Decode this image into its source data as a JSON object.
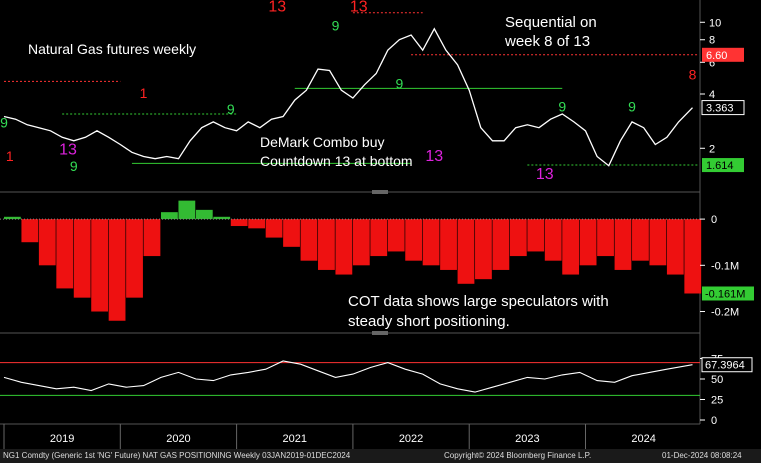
{
  "annotations": {
    "title": "Natural Gas futures weekly",
    "sequential_line1": "Sequential on",
    "sequential_line2": "week 8 of 13",
    "combo_line1": "DeMark Combo buy",
    "combo_line2": "Countdown 13 at bottom",
    "cot_line1": "COT data shows large speculators with",
    "cot_line2": "steady short positioning."
  },
  "footer": {
    "left": "NG1 Comdty (Generic 1st 'NG' Future) NAT GAS POSITIONING  Weekly 03JAN2019-01DEC2024",
    "center": "Copyright© 2024 Bloomberg Finance L.P.",
    "right": "01-Dec-2024 08:08:24"
  },
  "colors": {
    "background": "#000000",
    "price_line": "#ffffff",
    "resistance_level": "#ff3333",
    "current_price": "#ffffff",
    "support_level": "#33cc33",
    "bar_positive": "#33bb33",
    "bar_negative": "#ee1111",
    "demark_sell": "#ff2222",
    "demark_buy": "#33dd55",
    "combo_13": "#dd22dd",
    "axis_text": "#ffffff"
  },
  "chart_data": [
    {
      "type": "line",
      "name": "price",
      "yscale": "log",
      "ylim": [
        1.3,
        12
      ],
      "yticks": [
        10,
        8,
        6,
        4,
        2
      ],
      "x_labels": [
        "2019",
        "2020",
        "2021",
        "2022",
        "2023",
        "2024"
      ],
      "y_badges": [
        {
          "label": "6.60",
          "value": 6.6,
          "color": "#ff3333"
        },
        {
          "label": "3.363",
          "value": 3.363,
          "color": "#ffffff"
        },
        {
          "label": "1.614",
          "value": 1.614,
          "color": "#33cc33"
        }
      ],
      "x": [
        2019.0,
        2019.1,
        2019.2,
        2019.3,
        2019.4,
        2019.5,
        2019.6,
        2019.7,
        2019.8,
        2019.9,
        2020.0,
        2020.1,
        2020.2,
        2020.3,
        2020.4,
        2020.5,
        2020.6,
        2020.7,
        2020.8,
        2020.9,
        2021.0,
        2021.1,
        2021.2,
        2021.3,
        2021.4,
        2021.5,
        2021.6,
        2021.7,
        2021.8,
        2021.9,
        2022.0,
        2022.1,
        2022.2,
        2022.3,
        2022.4,
        2022.5,
        2022.6,
        2022.7,
        2022.8,
        2022.9,
        2023.0,
        2023.1,
        2023.2,
        2023.3,
        2023.4,
        2023.5,
        2023.6,
        2023.7,
        2023.8,
        2023.9,
        2024.0,
        2024.1,
        2024.2,
        2024.3,
        2024.4,
        2024.5,
        2024.6,
        2024.7,
        2024.8,
        2024.92
      ],
      "values": [
        3.0,
        2.9,
        2.7,
        2.6,
        2.5,
        2.3,
        2.2,
        2.3,
        2.5,
        2.3,
        2.1,
        1.9,
        1.8,
        1.75,
        1.8,
        1.75,
        2.2,
        2.6,
        2.8,
        2.6,
        2.5,
        2.8,
        2.6,
        2.9,
        3.0,
        3.7,
        4.2,
        5.5,
        5.4,
        4.2,
        3.8,
        4.5,
        5.2,
        7.0,
        8.0,
        8.5,
        7.0,
        9.2,
        7.0,
        5.8,
        4.2,
        2.6,
        2.2,
        2.2,
        2.6,
        2.7,
        2.6,
        2.9,
        3.1,
        2.8,
        2.5,
        1.8,
        1.6,
        2.2,
        2.8,
        2.6,
        2.1,
        2.3,
        2.8,
        3.36
      ],
      "levels": [
        {
          "name": "resistance 2019",
          "value": 4.7,
          "from": 2019.0,
          "to": 2020.0
        },
        {
          "name": "resistance 2021-22",
          "value": 11.3,
          "from": 2022.0,
          "to": 2022.6
        },
        {
          "name": "resistance current",
          "value": 6.6,
          "from": 2022.5,
          "to": 2025.0
        },
        {
          "name": "support 2019",
          "value": 3.1,
          "from": 2019.5,
          "to": 2021.0
        },
        {
          "name": "support 2020",
          "value": 1.65,
          "from": 2020.1,
          "to": 2022.5
        },
        {
          "name": "support 2021",
          "value": 4.3,
          "from": 2021.5,
          "to": 2023.8
        },
        {
          "name": "support 2023",
          "value": 1.614,
          "from": 2023.5,
          "to": 2025.0
        }
      ],
      "markers": [
        {
          "text": "13",
          "x": 2021.35,
          "y": 11.5,
          "color": "#ff2222"
        },
        {
          "text": "13",
          "x": 2022.05,
          "y": 11.5,
          "color": "#ff2222"
        },
        {
          "text": "13",
          "x": 2019.55,
          "y": 1.85,
          "color": "#dd22dd"
        },
        {
          "text": "13",
          "x": 2022.7,
          "y": 1.7,
          "color": "#dd22dd"
        },
        {
          "text": "13",
          "x": 2023.65,
          "y": 1.35,
          "color": "#dd22dd"
        },
        {
          "text": "9",
          "x": 2019.0,
          "y": 2.6,
          "color": "#33dd55"
        },
        {
          "text": "9",
          "x": 2019.6,
          "y": 1.5,
          "color": "#33dd55"
        },
        {
          "text": "9",
          "x": 2020.95,
          "y": 3.1,
          "color": "#33dd55"
        },
        {
          "text": "9",
          "x": 2022.4,
          "y": 4.3,
          "color": "#33dd55"
        },
        {
          "text": "9",
          "x": 2023.8,
          "y": 3.2,
          "color": "#33dd55"
        },
        {
          "text": "9",
          "x": 2024.4,
          "y": 3.2,
          "color": "#33dd55"
        },
        {
          "text": "9",
          "x": 2021.85,
          "y": 9.0,
          "color": "#33dd55"
        },
        {
          "text": "8",
          "x": 2024.92,
          "y": 4.8,
          "color": "#ff2222"
        },
        {
          "text": "1",
          "x": 2019.05,
          "y": 1.7,
          "color": "#ff2222"
        },
        {
          "text": "1",
          "x": 2020.2,
          "y": 3.8,
          "color": "#ff2222"
        }
      ]
    },
    {
      "type": "bar",
      "name": "cot_positioning",
      "ylim": [
        -0.24,
        0.05
      ],
      "yticks": [
        0,
        -0.1,
        -0.2
      ],
      "ytick_labels": [
        "0",
        "-0.1M",
        "-0.2M"
      ],
      "badge": {
        "label": "-0.161M",
        "value": -0.161,
        "color": "#33cc33"
      },
      "x": [
        2019.0,
        2019.15,
        2019.3,
        2019.45,
        2019.6,
        2019.75,
        2019.9,
        2020.05,
        2020.2,
        2020.35,
        2020.5,
        2020.65,
        2020.8,
        2020.95,
        2021.1,
        2021.25,
        2021.4,
        2021.55,
        2021.7,
        2021.85,
        2022.0,
        2022.15,
        2022.3,
        2022.45,
        2022.6,
        2022.75,
        2022.9,
        2023.05,
        2023.2,
        2023.35,
        2023.5,
        2023.65,
        2023.8,
        2023.95,
        2024.1,
        2024.25,
        2024.4,
        2024.55,
        2024.7,
        2024.85
      ],
      "values": [
        0.005,
        -0.05,
        -0.1,
        -0.15,
        -0.17,
        -0.2,
        -0.22,
        -0.17,
        -0.08,
        0.015,
        0.04,
        0.02,
        0.005,
        -0.015,
        -0.02,
        -0.04,
        -0.06,
        -0.09,
        -0.11,
        -0.12,
        -0.1,
        -0.08,
        -0.07,
        -0.09,
        -0.1,
        -0.11,
        -0.14,
        -0.13,
        -0.11,
        -0.08,
        -0.07,
        -0.09,
        -0.12,
        -0.1,
        -0.08,
        -0.11,
        -0.09,
        -0.1,
        -0.12,
        -0.161
      ]
    },
    {
      "type": "line",
      "name": "rsi",
      "ylim": [
        0,
        100
      ],
      "yticks": [
        75,
        50,
        25,
        0
      ],
      "levels": [
        70,
        30
      ],
      "badge": {
        "label": "67.3964",
        "value": 67.3964,
        "color": "#ffffff"
      },
      "x": [
        2019.0,
        2019.15,
        2019.3,
        2019.45,
        2019.6,
        2019.75,
        2019.9,
        2020.05,
        2020.2,
        2020.35,
        2020.5,
        2020.65,
        2020.8,
        2020.95,
        2021.1,
        2021.25,
        2021.4,
        2021.55,
        2021.7,
        2021.85,
        2022.0,
        2022.15,
        2022.3,
        2022.45,
        2022.6,
        2022.75,
        2022.9,
        2023.05,
        2023.2,
        2023.35,
        2023.5,
        2023.65,
        2023.8,
        2023.95,
        2024.1,
        2024.25,
        2024.4,
        2024.55,
        2024.7,
        2024.92
      ],
      "values": [
        52,
        46,
        42,
        38,
        40,
        36,
        44,
        40,
        42,
        52,
        58,
        50,
        48,
        55,
        58,
        62,
        72,
        68,
        60,
        52,
        56,
        64,
        70,
        62,
        56,
        44,
        38,
        34,
        40,
        46,
        52,
        50,
        55,
        58,
        48,
        46,
        54,
        58,
        62,
        67.4
      ]
    }
  ]
}
